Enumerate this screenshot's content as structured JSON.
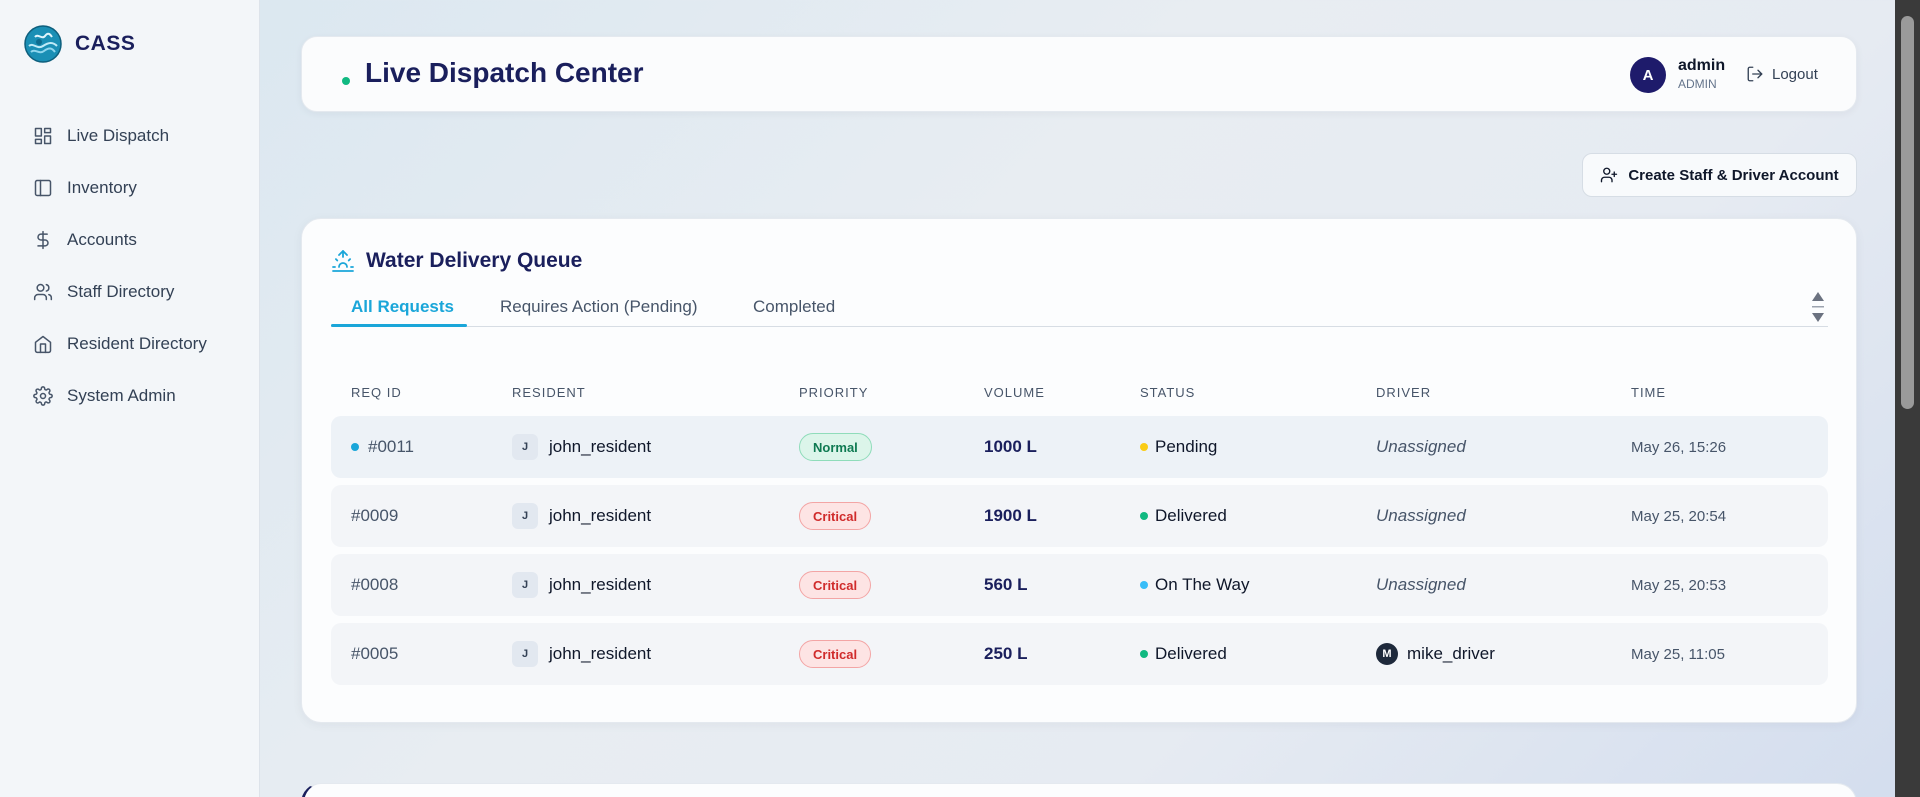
{
  "brand": {
    "name": "CASS",
    "logo_icon": "water-globe-icon"
  },
  "sidebar": {
    "items": [
      {
        "label": "Live Dispatch",
        "icon": "dashboard-grid-icon"
      },
      {
        "label": "Inventory",
        "icon": "panel-layout-icon"
      },
      {
        "label": "Accounts",
        "icon": "dollar-icon"
      },
      {
        "label": "Staff Directory",
        "icon": "users-icon"
      },
      {
        "label": "Resident Directory",
        "icon": "home-icon"
      },
      {
        "label": "System Admin",
        "icon": "gear-icon"
      }
    ]
  },
  "header": {
    "title": "Live Dispatch Center",
    "user": {
      "initial": "A",
      "name": "admin",
      "role": "ADMIN"
    },
    "logout_label": "Logout"
  },
  "actions": {
    "create_account_label": "Create Staff & Driver Account"
  },
  "queue": {
    "title": "Water Delivery Queue",
    "tabs": [
      {
        "label": "All Requests",
        "active": true
      },
      {
        "label": "Requires Action (Pending)",
        "active": false
      },
      {
        "label": "Completed",
        "active": false
      }
    ],
    "columns": [
      "REQ ID",
      "RESIDENT",
      "PRIORITY",
      "VOLUME",
      "STATUS",
      "DRIVER",
      "TIME"
    ],
    "rows": [
      {
        "id": "#0011",
        "resident_initial": "J",
        "resident": "john_resident",
        "priority": "Normal",
        "volume": "1000 L",
        "status": "Pending",
        "status_color": "#facc15",
        "driver": "Unassigned",
        "driver_initial": "",
        "time": "May 26, 15:26"
      },
      {
        "id": "#0009",
        "resident_initial": "J",
        "resident": "john_resident",
        "priority": "Critical",
        "volume": "1900 L",
        "status": "Delivered",
        "status_color": "#10b981",
        "driver": "Unassigned",
        "driver_initial": "",
        "time": "May 25, 20:54"
      },
      {
        "id": "#0008",
        "resident_initial": "J",
        "resident": "john_resident",
        "priority": "Critical",
        "volume": "560 L",
        "status": "On The Way",
        "status_color": "#38bdf8",
        "driver": "Unassigned",
        "driver_initial": "",
        "time": "May 25, 20:53"
      },
      {
        "id": "#0005",
        "resident_initial": "J",
        "resident": "john_resident",
        "priority": "Critical",
        "volume": "250 L",
        "status": "Delivered",
        "status_color": "#10b981",
        "driver": "mike_driver",
        "driver_initial": "M",
        "time": "May 25, 11:05"
      }
    ]
  },
  "colors": {
    "accent": "#1aa6d9",
    "navy": "#1a1f5c",
    "live": "#10b981"
  }
}
